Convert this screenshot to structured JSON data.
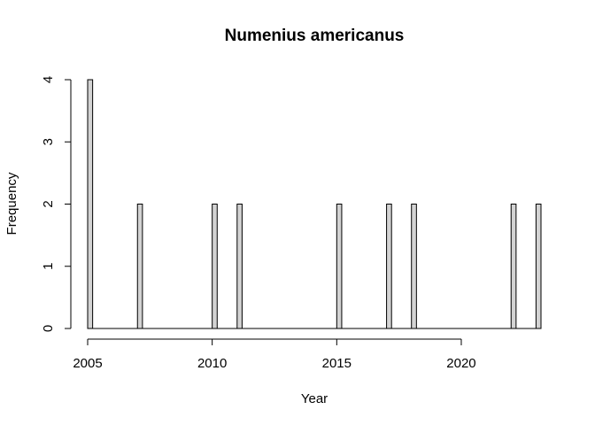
{
  "chart_data": {
    "type": "bar",
    "title": "Numenius americanus",
    "xlabel": "Year",
    "ylabel": "Frequency",
    "bin_width": 0.2,
    "xlim": [
      2005,
      2023
    ],
    "ylim": [
      0,
      4
    ],
    "x_ticks": [
      2005,
      2010,
      2015,
      2020
    ],
    "y_ticks": [
      0,
      1,
      2,
      3,
      4
    ],
    "bars": [
      {
        "x": 2005,
        "value": 4
      },
      {
        "x": 2007,
        "value": 2
      },
      {
        "x": 2010,
        "value": 2
      },
      {
        "x": 2011,
        "value": 2
      },
      {
        "x": 2015,
        "value": 2
      },
      {
        "x": 2017,
        "value": 2
      },
      {
        "x": 2018,
        "value": 2
      },
      {
        "x": 2022,
        "value": 2
      },
      {
        "x": 2023,
        "value": 2
      }
    ],
    "grid": false,
    "legend": "none"
  }
}
